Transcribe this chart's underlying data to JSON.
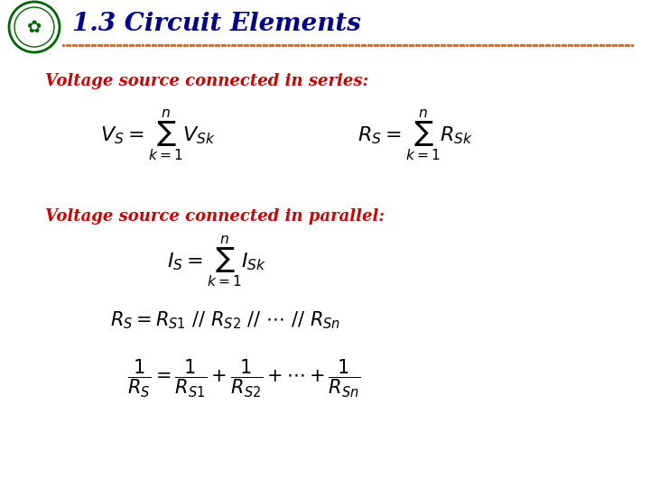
{
  "title": "1.3 Circuit Elements",
  "title_color": "#00008B",
  "title_fontsize": 20,
  "bg_color": "#FFFFFF",
  "series_label_color": "#CC0000",
  "series_label_fontsize": 13,
  "series_label1": "Voltage source connected in series:",
  "series_label2": "Voltage source connected in parallel:",
  "formula_color": "#000000",
  "divider_color": "#D2691E",
  "logo_text": ""
}
